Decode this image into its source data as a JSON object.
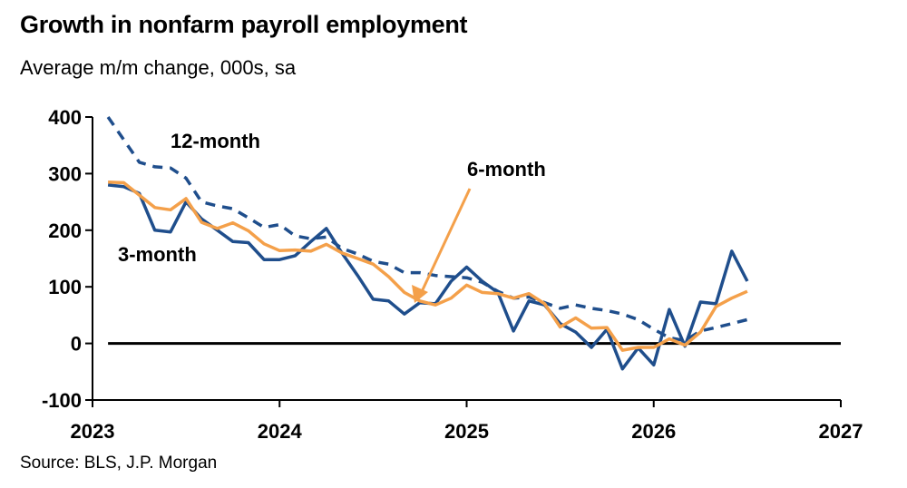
{
  "title": "Growth in nonfarm payroll employment",
  "subtitle": "Average m/m change, 000s, sa",
  "source": "Source: BLS, J.P. Morgan",
  "colors": {
    "three_month": "#1f4e8c",
    "six_month": "#f4a04a",
    "twelve_month": "#1f4e8c",
    "zero_line": "#000000"
  },
  "chart_data": {
    "type": "line",
    "title": "Growth in nonfarm payroll employment",
    "subtitle": "Average m/m change, 000s, sa",
    "xlim": [
      2023,
      2027
    ],
    "ylim": [
      -100,
      400
    ],
    "x_ticks": [
      "2023",
      "2024",
      "2025",
      "2026",
      "2027"
    ],
    "y_ticks": [
      "400",
      "300",
      "200",
      "100",
      "0",
      "-100"
    ],
    "y_tick_values": [
      400,
      300,
      200,
      100,
      0,
      -100
    ],
    "x_tick_values": [
      2023,
      2024,
      2025,
      2026,
      2027
    ],
    "grid": false,
    "annotations": [
      {
        "text": "12-month",
        "series": "12-month"
      },
      {
        "text": "6-month",
        "series": "6-month"
      },
      {
        "text": "3-month",
        "series": "3-month"
      }
    ],
    "series": [
      {
        "name": "3-month",
        "style": "solid",
        "x": [
          2023.083,
          2023.167,
          2023.25,
          2023.333,
          2023.417,
          2023.5,
          2023.583,
          2023.667,
          2023.75,
          2023.833,
          2023.917,
          2024.0,
          2024.083,
          2024.167,
          2024.25,
          2024.333,
          2024.417,
          2024.5,
          2024.583,
          2024.667,
          2024.75,
          2024.833,
          2024.917,
          2025.0,
          2025.083,
          2025.167,
          2025.25,
          2025.333,
          2025.417,
          2025.5,
          2025.583,
          2025.667,
          2025.75,
          2025.833,
          2025.917,
          2026.0,
          2026.083,
          2026.167,
          2026.25,
          2026.333,
          2026.417,
          2026.5
        ],
        "values": [
          280,
          277,
          265,
          200,
          197,
          250,
          220,
          200,
          180,
          178,
          148,
          148,
          155,
          180,
          203,
          160,
          120,
          78,
          75,
          52,
          72,
          70,
          110,
          135,
          110,
          90,
          22,
          75,
          68,
          35,
          20,
          -7,
          25,
          -45,
          -8,
          -38,
          60,
          -5,
          73,
          70,
          163,
          110
        ]
      },
      {
        "name": "6-month",
        "style": "solid",
        "x": [
          2023.083,
          2023.167,
          2023.25,
          2023.333,
          2023.417,
          2023.5,
          2023.583,
          2023.667,
          2023.75,
          2023.833,
          2023.917,
          2024.0,
          2024.083,
          2024.167,
          2024.25,
          2024.333,
          2024.417,
          2024.5,
          2024.583,
          2024.667,
          2024.75,
          2024.833,
          2024.917,
          2025.0,
          2025.083,
          2025.167,
          2025.25,
          2025.333,
          2025.417,
          2025.5,
          2025.583,
          2025.667,
          2025.75,
          2025.833,
          2025.917,
          2026.0,
          2026.083,
          2026.167,
          2026.25,
          2026.333,
          2026.417,
          2026.5
        ],
        "values": [
          285,
          284,
          262,
          240,
          236,
          256,
          214,
          203,
          213,
          199,
          176,
          164,
          165,
          163,
          175,
          160,
          150,
          140,
          118,
          90,
          75,
          68,
          80,
          103,
          90,
          88,
          80,
          88,
          70,
          29,
          45,
          27,
          28,
          -12,
          -7,
          -7,
          8,
          -3,
          20,
          65,
          80,
          92
        ]
      },
      {
        "name": "12-month",
        "style": "dashed",
        "x": [
          2023.083,
          2023.167,
          2023.25,
          2023.333,
          2023.417,
          2023.5,
          2023.583,
          2023.667,
          2023.75,
          2023.833,
          2023.917,
          2024.0,
          2024.083,
          2024.167,
          2024.25,
          2024.333,
          2024.417,
          2024.5,
          2024.583,
          2024.667,
          2024.75,
          2024.833,
          2024.917,
          2025.0,
          2025.083,
          2025.167,
          2025.25,
          2025.333,
          2025.417,
          2025.5,
          2025.583,
          2025.667,
          2025.75,
          2025.833,
          2025.917,
          2026.0,
          2026.083,
          2026.167,
          2026.25,
          2026.333,
          2026.417,
          2026.5
        ],
        "values": [
          400,
          360,
          320,
          312,
          310,
          292,
          250,
          243,
          238,
          222,
          205,
          210,
          190,
          185,
          188,
          168,
          158,
          145,
          140,
          125,
          125,
          120,
          118,
          116,
          108,
          92,
          80,
          82,
          72,
          62,
          68,
          62,
          58,
          52,
          42,
          25,
          10,
          5,
          22,
          28,
          35,
          42
        ]
      }
    ]
  }
}
